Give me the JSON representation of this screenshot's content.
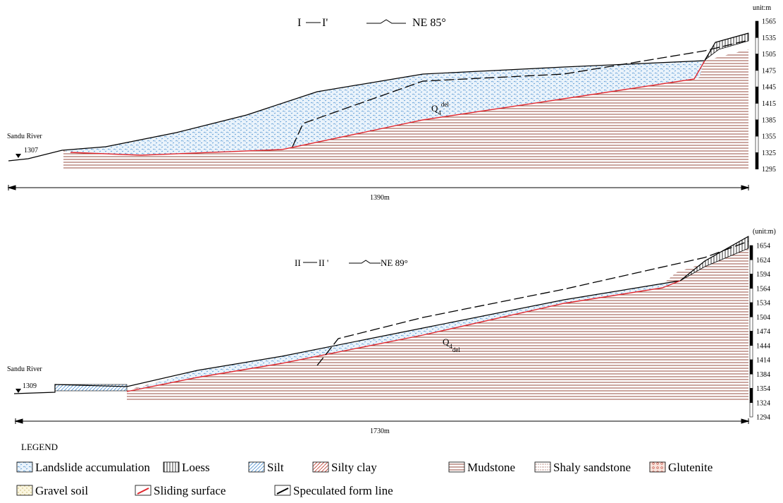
{
  "sections": [
    {
      "start": "I",
      "end": "I'",
      "direction": "NE 85°",
      "unit": "unit:m",
      "river": "Sandu River",
      "river_level": "1307",
      "length": "1390m",
      "formation": "Q",
      "formation_sub": "4",
      "formation_sup": "del",
      "scale": [
        "1565",
        "1535",
        "1505",
        "1475",
        "1445",
        "1415",
        "1385",
        "1355",
        "1325",
        "1295"
      ]
    },
    {
      "start": "II",
      "end": "II '",
      "direction": "NE 89°",
      "unit": "(unit:m)",
      "river": "Sandu River",
      "river_level": "1309",
      "length": "1730m",
      "formation": "Q",
      "formation_sub": "4",
      "formation_sup": "del",
      "scale": [
        "1654",
        "1624",
        "1594",
        "1564",
        "1534",
        "1504",
        "1474",
        "1444",
        "1414",
        "1384",
        "1354",
        "1324",
        "1294"
      ]
    }
  ],
  "legend": {
    "title": "LEGEND",
    "items": [
      "Landslide accumulation",
      "Loess",
      "Silt",
      "Silty clay",
      "Mudstone",
      "Shaly sandstone",
      "Glutenite",
      "Gravel soil",
      "Sliding surface",
      "Speculated form line"
    ]
  }
}
